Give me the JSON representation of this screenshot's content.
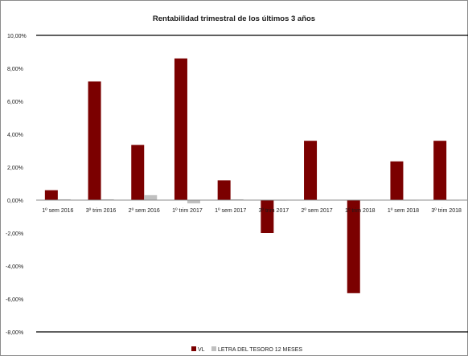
{
  "chart_data": {
    "type": "bar",
    "title": "Rentabilidad trimestral de los últimos 3 años",
    "categories": [
      "1º sem 2016",
      "3º trim 2016",
      "2º sem 2016",
      "1º trim 2017",
      "1º sem 2017",
      "3º trim 2017",
      "2º sem 2017",
      "1º trim 2018",
      "1º sem 2018",
      "3º trim 2018"
    ],
    "series": [
      {
        "name": "VL",
        "color": "#7b0000",
        "values": [
          0.6,
          7.2,
          3.35,
          8.6,
          1.2,
          -2.0,
          3.6,
          -5.65,
          2.35,
          3.6
        ]
      },
      {
        "name": "LETRA DEL TESORO 12 MESES",
        "color": "#c0c0c0",
        "values": [
          0.05,
          0.05,
          0.3,
          -0.2,
          0.05,
          -0.02,
          -0.02,
          -0.02,
          -0.02,
          -0.02
        ]
      }
    ],
    "yticks": [
      "10,00%",
      "8,00%",
      "6,00%",
      "4,00%",
      "2,00%",
      "0,00%",
      "-2,00%",
      "-4,00%",
      "-6,00%",
      "-8,00%"
    ],
    "ylim": [
      -8,
      10
    ],
    "xlabel": "",
    "ylabel": "",
    "grid": false,
    "legend_position": "bottom"
  }
}
